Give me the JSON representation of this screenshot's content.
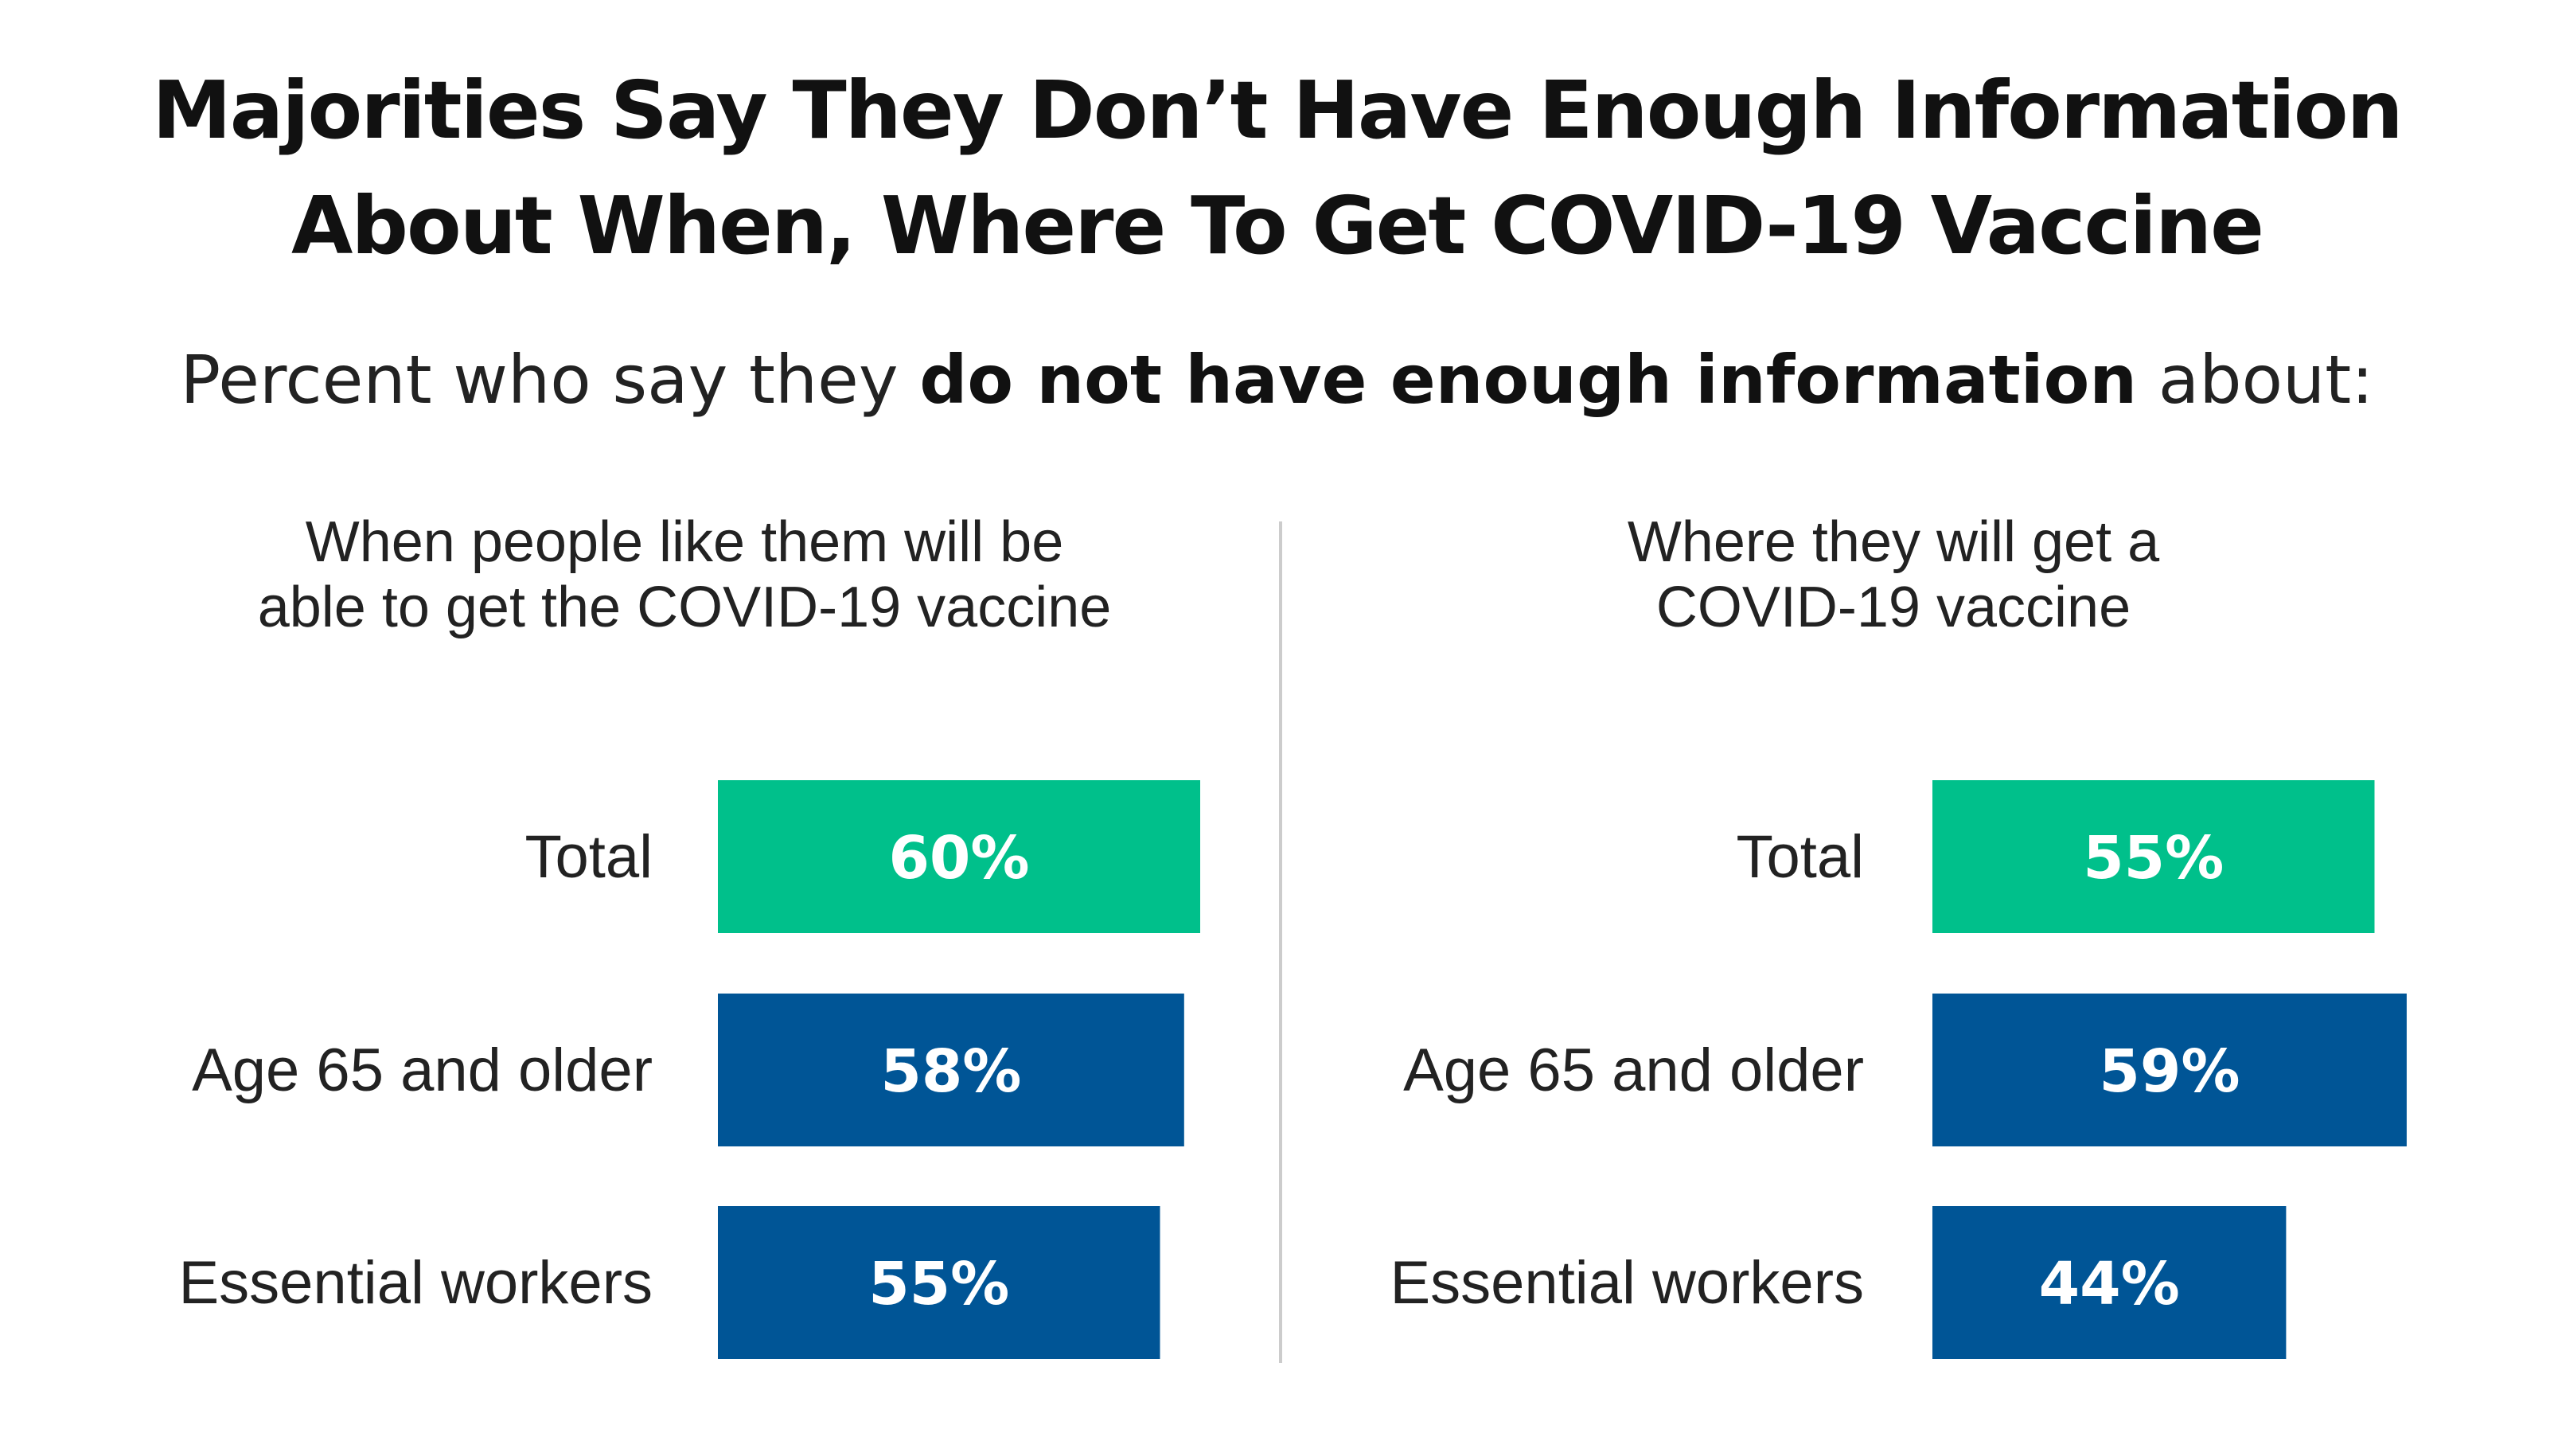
{
  "title_line1": "Majorities Say They Don’t Have Enough Information",
  "title_line2": "About When, Where To Get COVID-19 Vaccine",
  "subtitle": {
    "before": "Percent who say they ",
    "bold": "do not have enough information",
    "after": " about:"
  },
  "colors": {
    "total": "#00C08B",
    "subgroup": "#005596",
    "divider": "#cccccc"
  },
  "chart_data": [
    {
      "type": "bar",
      "orientation": "horizontal",
      "title_lines": [
        "When people like them will be",
        "able to get the COVID-19 vaccine"
      ],
      "categories": [
        "Total",
        "Age 65 and older",
        "Essential workers"
      ],
      "values": [
        60,
        58,
        55
      ],
      "value_labels": [
        "60%",
        "58%",
        "55%"
      ],
      "unit": "%"
    },
    {
      "type": "bar",
      "orientation": "horizontal",
      "title_lines": [
        "Where they will get a",
        "COVID-19 vaccine"
      ],
      "categories": [
        "Total",
        "Age 65 and older",
        "Essential workers"
      ],
      "values": [
        55,
        59,
        44
      ],
      "value_labels": [
        "55%",
        "59%",
        "44%"
      ],
      "unit": "%"
    }
  ]
}
